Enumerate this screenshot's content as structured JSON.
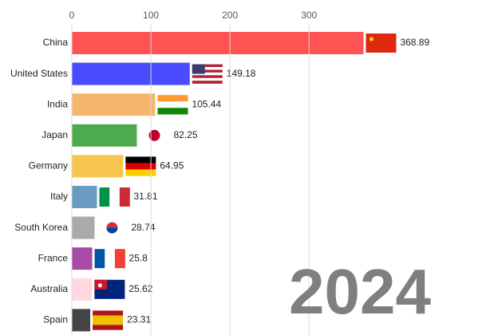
{
  "chart_data": {
    "type": "bar",
    "orientation": "horizontal",
    "categories": [
      "China",
      "United States",
      "India",
      "Japan",
      "Germany",
      "Italy",
      "South Korea",
      "France",
      "Australia",
      "Spain"
    ],
    "values": [
      368.89,
      149.18,
      105.44,
      82.25,
      64.95,
      31.81,
      28.74,
      25.8,
      25.62,
      23.31
    ],
    "colors": [
      "#ff5252",
      "#4b4bff",
      "#f7b66e",
      "#4daa4d",
      "#f8c54e",
      "#6a9bc0",
      "#aaaaaa",
      "#a64ca6",
      "#ffd8e0",
      "#444444"
    ],
    "xlim": [
      0,
      539
    ],
    "xticks": [
      0,
      100,
      200,
      300
    ],
    "grid": true,
    "annotation": "2024"
  }
}
